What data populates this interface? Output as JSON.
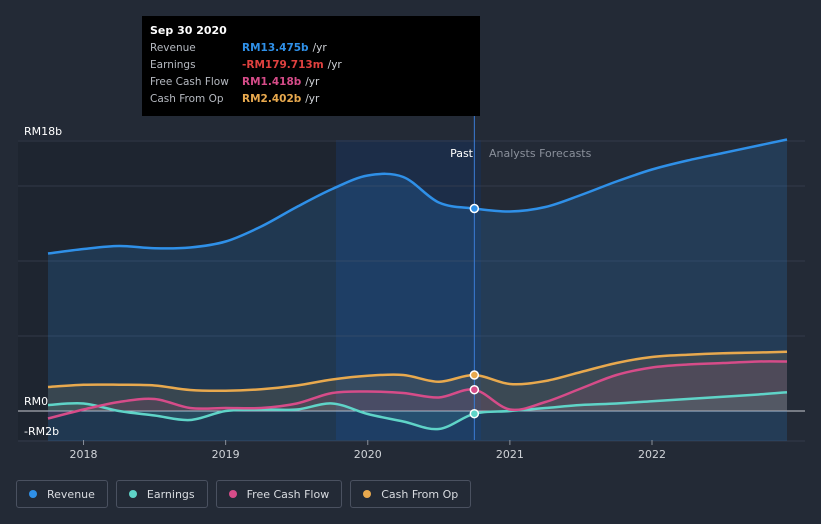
{
  "tooltip": {
    "date": "Sep 30 2020",
    "rows": [
      {
        "label": "Revenue",
        "value": "RM13.475b",
        "unit": "/yr",
        "color": "#2f90e8"
      },
      {
        "label": "Earnings",
        "value": "-RM179.713m",
        "unit": "/yr",
        "color": "#e0413f"
      },
      {
        "label": "Free Cash Flow",
        "value": "RM1.418b",
        "unit": "/yr",
        "color": "#d64c89"
      },
      {
        "label": "Cash From Op",
        "value": "RM2.402b",
        "unit": "/yr",
        "color": "#e8a94e"
      }
    ]
  },
  "legend": [
    {
      "label": "Revenue",
      "color": "#2f90e8"
    },
    {
      "label": "Earnings",
      "color": "#5fd4c8"
    },
    {
      "label": "Free Cash Flow",
      "color": "#d64c89"
    },
    {
      "label": "Cash From Op",
      "color": "#e8a94e"
    }
  ],
  "chart_data": {
    "type": "line",
    "title": "",
    "ylim": [
      -2,
      18
    ],
    "y_tick_labels": [
      "RM18b",
      "RM0",
      "-RM2b"
    ],
    "x_tick_labels": [
      "2018",
      "2019",
      "2020",
      "2021",
      "2022"
    ],
    "xlim": [
      2017.75,
      2022.95
    ],
    "past_label": "Past",
    "forecast_label": "Analysts Forecasts",
    "highlight_x": 2020.75,
    "series": [
      {
        "name": "Revenue",
        "color": "#2f90e8",
        "x": [
          2017.75,
          2018.0,
          2018.25,
          2018.5,
          2018.75,
          2019.0,
          2019.25,
          2019.5,
          2019.75,
          2020.0,
          2020.25,
          2020.5,
          2020.75,
          2021.0,
          2021.25,
          2021.5,
          2021.75,
          2022.0,
          2022.25,
          2022.5,
          2022.75,
          2022.95
        ],
        "y": [
          10.5,
          10.8,
          11.0,
          10.85,
          10.9,
          11.3,
          12.3,
          13.6,
          14.8,
          15.7,
          15.6,
          13.9,
          13.5,
          13.3,
          13.6,
          14.4,
          15.3,
          16.1,
          16.7,
          17.2,
          17.7,
          18.1
        ]
      },
      {
        "name": "Earnings",
        "color": "#5fd4c8",
        "x": [
          2017.75,
          2018.0,
          2018.25,
          2018.5,
          2018.75,
          2019.0,
          2019.25,
          2019.5,
          2019.75,
          2020.0,
          2020.25,
          2020.5,
          2020.75,
          2021.0,
          2021.25,
          2021.5,
          2021.75,
          2022.0,
          2022.25,
          2022.5,
          2022.75,
          2022.95
        ],
        "y": [
          0.4,
          0.5,
          0.0,
          -0.3,
          -0.6,
          0.0,
          0.1,
          0.1,
          0.5,
          -0.2,
          -0.7,
          -1.2,
          -0.18,
          0.0,
          0.2,
          0.4,
          0.5,
          0.65,
          0.8,
          0.95,
          1.1,
          1.25
        ]
      },
      {
        "name": "Free Cash Flow",
        "color": "#d64c89",
        "x": [
          2017.75,
          2018.0,
          2018.25,
          2018.5,
          2018.75,
          2019.0,
          2019.25,
          2019.5,
          2019.75,
          2020.0,
          2020.25,
          2020.5,
          2020.75,
          2021.0,
          2021.25,
          2021.5,
          2021.75,
          2022.0,
          2022.25,
          2022.5,
          2022.75,
          2022.95
        ],
        "y": [
          -0.5,
          0.1,
          0.6,
          0.8,
          0.2,
          0.2,
          0.2,
          0.5,
          1.2,
          1.3,
          1.2,
          0.9,
          1.42,
          0.1,
          0.6,
          1.5,
          2.4,
          2.9,
          3.1,
          3.2,
          3.3,
          3.3
        ]
      },
      {
        "name": "Cash From Op",
        "color": "#e8a94e",
        "x": [
          2017.75,
          2018.0,
          2018.25,
          2018.5,
          2018.75,
          2019.0,
          2019.25,
          2019.5,
          2019.75,
          2020.0,
          2020.25,
          2020.5,
          2020.75,
          2021.0,
          2021.25,
          2021.5,
          2021.75,
          2022.0,
          2022.25,
          2022.5,
          2022.75,
          2022.95
        ],
        "y": [
          1.6,
          1.75,
          1.75,
          1.7,
          1.4,
          1.35,
          1.45,
          1.7,
          2.1,
          2.35,
          2.4,
          1.95,
          2.4,
          1.8,
          2.0,
          2.6,
          3.2,
          3.6,
          3.75,
          3.85,
          3.9,
          3.95
        ]
      }
    ]
  }
}
